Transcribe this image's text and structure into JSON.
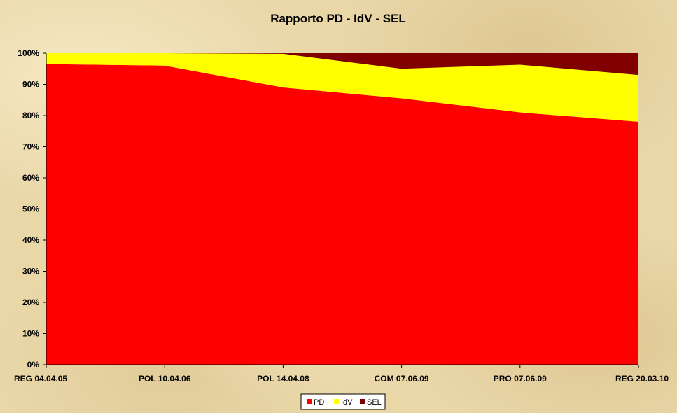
{
  "chart_data": {
    "type": "area",
    "stacked": "percent",
    "title": "Rapporto PD - IdV - SEL",
    "xlabel": "",
    "ylabel": "",
    "categories": [
      "REG 04.04.05",
      "POL 10.04.06",
      "POL 14.04.08",
      "COM 07.06.09",
      "PRO 07.06.09",
      "REG 20.03.10"
    ],
    "y_ticks": [
      "0%",
      "10%",
      "20%",
      "30%",
      "40%",
      "50%",
      "60%",
      "70%",
      "80%",
      "90%",
      "100%"
    ],
    "ylim": [
      0,
      100
    ],
    "grid": false,
    "legend": "bottom",
    "series": [
      {
        "name": "PD",
        "color": "#ff0000",
        "values": [
          96.5,
          96,
          89,
          85.5,
          81,
          78
        ]
      },
      {
        "name": "IdV",
        "color": "#ffff00",
        "values": [
          3.5,
          4,
          10.8,
          9.5,
          15.3,
          15
        ]
      },
      {
        "name": "SEL",
        "color": "#800000",
        "values": [
          0,
          0,
          0.2,
          5,
          3.7,
          7
        ]
      }
    ]
  }
}
